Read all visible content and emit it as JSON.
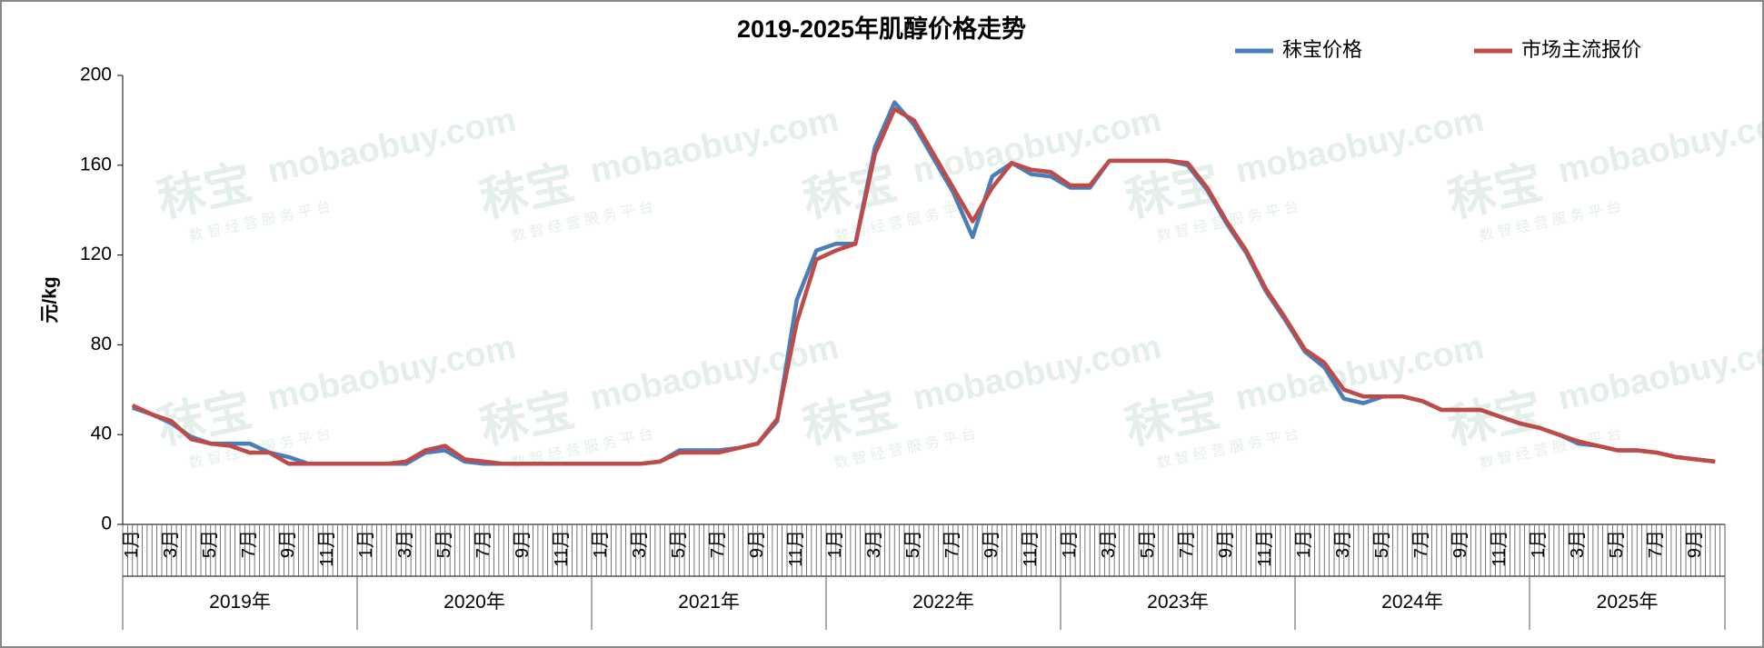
{
  "chart_data": {
    "type": "line",
    "title": "2019-2025年肌醇价格走势",
    "ylabel": "元/kg",
    "ylim": [
      0,
      200
    ],
    "yticks": [
      0,
      40,
      80,
      120,
      160,
      200
    ],
    "categories": [
      "1月",
      null,
      "3月",
      null,
      "5月",
      null,
      "7月",
      null,
      "9月",
      null,
      "11月",
      null,
      "1月",
      null,
      "3月",
      null,
      "5月",
      null,
      "7月",
      null,
      "9月",
      null,
      "11月",
      null,
      "1月",
      null,
      "3月",
      null,
      "5月",
      null,
      "7月",
      null,
      "9月",
      null,
      "11月",
      null,
      "1月",
      null,
      "3月",
      null,
      "5月",
      null,
      "7月",
      null,
      "9月",
      null,
      "11月",
      null,
      "1月",
      null,
      "3月",
      null,
      "5月",
      null,
      "7月",
      null,
      "9月",
      null,
      "11月",
      null,
      "1月",
      null,
      "3月",
      null,
      "5月",
      null,
      "7月",
      null,
      "9月",
      null,
      "11月",
      null,
      "1月",
      null,
      "3月",
      null,
      "5月",
      null,
      "7月",
      null,
      "9月",
      null
    ],
    "year_labels": [
      "2019年",
      "2020年",
      "2021年",
      "2022年",
      "2023年",
      "2024年",
      "2025年"
    ],
    "series": [
      {
        "name": "秣宝价格",
        "color": "#4a7ebb",
        "values": [
          52,
          49,
          45,
          39,
          36,
          36,
          36,
          32,
          30,
          27,
          27,
          27,
          27,
          27,
          27,
          32,
          33,
          28,
          27,
          27,
          27,
          27,
          27,
          27,
          27,
          27,
          27,
          28,
          33,
          33,
          33,
          34,
          36,
          46,
          100,
          122,
          125,
          125,
          168,
          188,
          178,
          163,
          148,
          128,
          155,
          161,
          156,
          155,
          150,
          150,
          162,
          162,
          162,
          162,
          160,
          149,
          134,
          121,
          104,
          91,
          77,
          70,
          56,
          54,
          57,
          57,
          55,
          51,
          51,
          51,
          48,
          45,
          43,
          40,
          36,
          35,
          33,
          33,
          32,
          30,
          29,
          28
        ]
      },
      {
        "name": "市场主流报价",
        "color": "#be4b48",
        "values": [
          53,
          49,
          46,
          38,
          36,
          35,
          32,
          32,
          27,
          27,
          27,
          27,
          27,
          27,
          28,
          33,
          35,
          29,
          28,
          27,
          27,
          27,
          27,
          27,
          27,
          27,
          27,
          28,
          32,
          32,
          32,
          34,
          36,
          47,
          90,
          118,
          122,
          125,
          165,
          185,
          180,
          165,
          150,
          135,
          150,
          161,
          158,
          157,
          151,
          151,
          162,
          162,
          162,
          162,
          161,
          150,
          135,
          122,
          105,
          92,
          78,
          72,
          60,
          57,
          57,
          57,
          55,
          51,
          51,
          51,
          48,
          45,
          43,
          40,
          37,
          35,
          33,
          33,
          32,
          30,
          29,
          28
        ]
      }
    ],
    "watermark": {
      "brand": "秣宝",
      "domain": "mobaobuy.com",
      "slogan": "数 智 经 营 服 务 平 台"
    }
  }
}
